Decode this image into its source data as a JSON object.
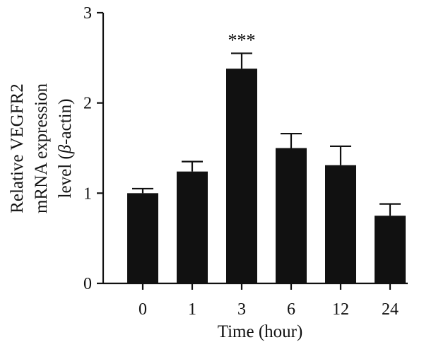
{
  "chart_data": {
    "type": "bar",
    "title": "",
    "xlabel": "Time (hour)",
    "ylabel_lines": [
      "Relative VEGFR2",
      "mRNA expression"
    ],
    "ylabel_line3_parts": [
      "level (",
      "β",
      "-actin)"
    ],
    "categories": [
      "0",
      "1",
      "3",
      "6",
      "12",
      "24"
    ],
    "values": [
      1.0,
      1.24,
      2.38,
      1.5,
      1.31,
      0.75
    ],
    "errors": [
      0.05,
      0.11,
      0.17,
      0.16,
      0.21,
      0.13
    ],
    "significance": [
      "",
      "",
      "***",
      "",
      "",
      ""
    ],
    "ylim": [
      0,
      3
    ],
    "yticks": [
      0,
      1,
      2,
      3
    ],
    "bar_color": "#111111",
    "grid": false,
    "legend": "none"
  }
}
